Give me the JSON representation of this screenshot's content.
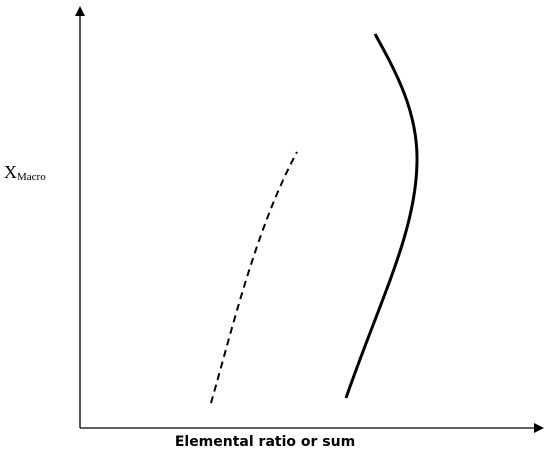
{
  "y_axis": {
    "symbol": "X",
    "subscript": "Macro"
  },
  "x_axis": {
    "label": "Elemental ratio or sum"
  }
}
